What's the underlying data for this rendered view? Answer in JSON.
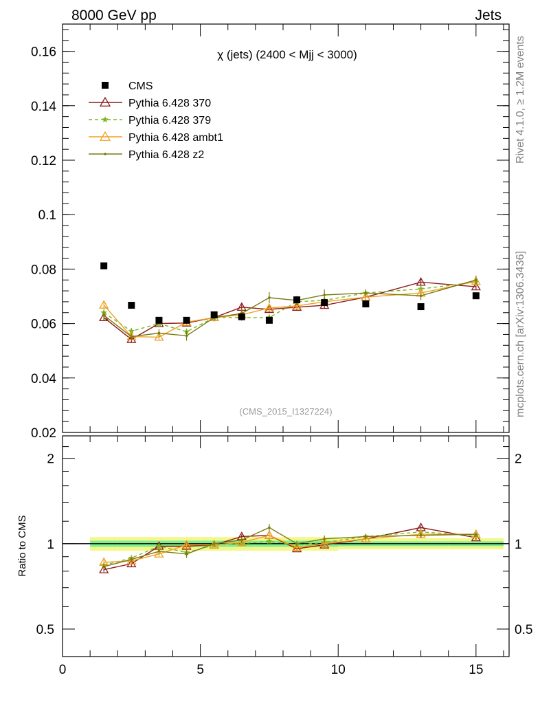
{
  "header": {
    "left": "8000 GeV pp",
    "right": "Jets"
  },
  "side": {
    "rivet": "Rivet 4.1.0, ≥ 1.2M events",
    "mcplots": "mcplots.cern.ch [arXiv:1306.3436]"
  },
  "colors": {
    "cms": "#000000",
    "p370": "#8b1a1a",
    "p379": "#7cb51f",
    "ambt1": "#f0a020",
    "z2": "#7a7a10",
    "band_outer": "#f4f78a",
    "band_inner": "#80ee90"
  },
  "chart_data": [
    {
      "type": "line",
      "title": "χ (jets) (2400 < Mjj < 3000)",
      "watermark": "(CMS_2015_I1327224)",
      "xlabel": "",
      "ylabel": "",
      "xlim": [
        0,
        16.2
      ],
      "ylim": [
        0.02,
        0.17
      ],
      "yticks": [
        0.02,
        0.04,
        0.06,
        0.08,
        0.1,
        0.12,
        0.14,
        0.16
      ],
      "ytick_labels": [
        "0.02",
        "0.04",
        "0.06",
        "0.08",
        "0.1",
        "0.12",
        "0.14",
        "0.16"
      ],
      "x": [
        1.5,
        2.5,
        3.5,
        4.5,
        5.5,
        6.5,
        7.5,
        8.5,
        9.5,
        11,
        13,
        15
      ],
      "legend_position": "top-left",
      "series": [
        {
          "name": "CMS",
          "key": "cms",
          "marker": "square",
          "values": [
            0.0812,
            0.0667,
            0.0612,
            0.0612,
            0.0632,
            0.0625,
            0.0612,
            0.0687,
            0.0677,
            0.0672,
            0.0662,
            0.0702
          ]
        },
        {
          "name": "Pythia 6.428 370",
          "key": "p370",
          "marker": "triangle-open",
          "dash": "",
          "values": [
            0.0622,
            0.0542,
            0.06,
            0.0602,
            0.0622,
            0.066,
            0.0652,
            0.066,
            0.0667,
            0.0697,
            0.0752,
            0.0735
          ],
          "errors": [
            0.0012,
            0.0012,
            0.0012,
            0.0012,
            0.0012,
            0.0012,
            0.0012,
            0.0012,
            0.0012,
            0.0012,
            0.0012,
            0.0012
          ]
        },
        {
          "name": "Pythia 6.428 379",
          "key": "p379",
          "marker": "star",
          "dash": "5,4",
          "values": [
            0.064,
            0.0572,
            0.06,
            0.057,
            0.0622,
            0.0622,
            0.0622,
            0.068,
            0.0685,
            0.0712,
            0.0727,
            0.0752
          ],
          "errors": [
            0.0012,
            0.0012,
            0.0012,
            0.0012,
            0.0012,
            0.0012,
            0.0012,
            0.0012,
            0.0012,
            0.0012,
            0.0012,
            0.0012
          ]
        },
        {
          "name": "Pythia 6.428 ambt1",
          "key": "ambt1",
          "marker": "triangle-open",
          "dash": "",
          "values": [
            0.0668,
            0.0552,
            0.055,
            0.0605,
            0.0622,
            0.0632,
            0.0657,
            0.0665,
            0.068,
            0.0697,
            0.0712,
            0.0755
          ],
          "errors": [
            0.0014,
            0.0012,
            0.0012,
            0.0012,
            0.0012,
            0.0012,
            0.0012,
            0.0012,
            0.0012,
            0.0012,
            0.0014,
            0.0014
          ]
        },
        {
          "name": "Pythia 6.428 z2",
          "key": "z2",
          "marker": "dot",
          "dash": "",
          "values": [
            0.063,
            0.0552,
            0.0565,
            0.0555,
            0.0622,
            0.0637,
            0.0695,
            0.0685,
            0.0705,
            0.0712,
            0.0702,
            0.076
          ],
          "errors": [
            0.0014,
            0.0012,
            0.0014,
            0.0018,
            0.0014,
            0.0016,
            0.002,
            0.0016,
            0.002,
            0.0014,
            0.0016,
            0.0016
          ]
        }
      ]
    },
    {
      "type": "line",
      "title": "",
      "xlabel": "",
      "ylabel": "Ratio to CMS",
      "scale": "log",
      "xlim": [
        0,
        16.2
      ],
      "ylim": [
        0.4,
        2.4
      ],
      "xticks": [
        0,
        5,
        10,
        15
      ],
      "xtick_labels": [
        "0",
        "5",
        "10",
        "15"
      ],
      "yticks": [
        0.5,
        1,
        2
      ],
      "ytick_labels": [
        "0.5",
        "1",
        "2"
      ],
      "x": [
        1.5,
        2.5,
        3.5,
        4.5,
        5.5,
        6.5,
        7.5,
        8.5,
        9.5,
        11,
        13,
        15
      ],
      "band_inner": [
        0.025,
        0.025,
        0.025,
        0.025,
        0.025,
        0.025,
        0.025,
        0.025,
        0.025,
        0.02,
        0.02,
        0.02
      ],
      "band_outer": [
        0.055,
        0.055,
        0.055,
        0.055,
        0.055,
        0.055,
        0.055,
        0.055,
        0.055,
        0.045,
        0.045,
        0.045
      ],
      "series": [
        {
          "name": "Pythia 6.428 370",
          "key": "p370",
          "values": [
            0.81,
            0.85,
            0.98,
            0.98,
            0.99,
            1.06,
            1.07,
            0.96,
            0.99,
            1.04,
            1.14,
            1.05
          ]
        },
        {
          "name": "Pythia 6.428 379",
          "key": "p379",
          "values": [
            0.84,
            0.89,
            0.98,
            0.93,
            0.99,
            1.0,
            1.02,
            0.99,
            1.01,
            1.06,
            1.1,
            1.07
          ]
        },
        {
          "name": "Pythia 6.428 ambt1",
          "key": "ambt1",
          "values": [
            0.86,
            0.87,
            0.92,
            0.99,
            0.99,
            1.01,
            1.07,
            0.97,
            1.0,
            1.04,
            1.08,
            1.08
          ]
        },
        {
          "name": "Pythia 6.428 z2",
          "key": "z2",
          "values": [
            0.83,
            0.88,
            0.94,
            0.92,
            1.0,
            1.03,
            1.14,
            1.0,
            1.04,
            1.06,
            1.07,
            1.08
          ]
        }
      ]
    }
  ]
}
